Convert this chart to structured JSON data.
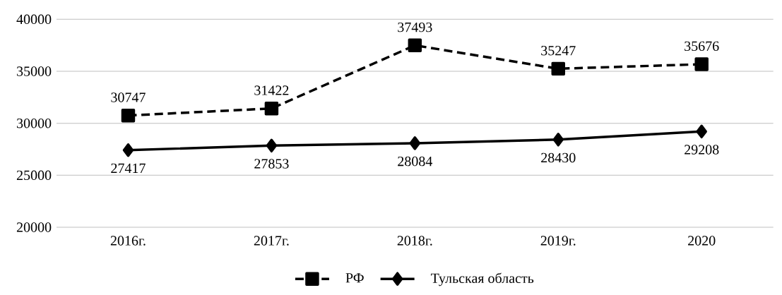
{
  "chart_data": {
    "type": "line",
    "categories": [
      "2016г.",
      "2017г.",
      "2018г.",
      "2019г.",
      "2020"
    ],
    "series": [
      {
        "name": "РФ",
        "color": "#000000",
        "values": [
          30747,
          31422,
          37493,
          35247,
          35676
        ],
        "marker": "square",
        "line_style": "dashed"
      },
      {
        "name": "Тульская область",
        "color": "#000000",
        "values": [
          27417,
          27853,
          28084,
          28430,
          29208
        ],
        "marker": "diamond",
        "line_style": "solid"
      }
    ],
    "ylim": [
      20000,
      40000
    ],
    "yticks": [
      20000,
      25000,
      30000,
      35000,
      40000
    ],
    "grid": "y",
    "legend": "bottom",
    "data_labels": true
  }
}
